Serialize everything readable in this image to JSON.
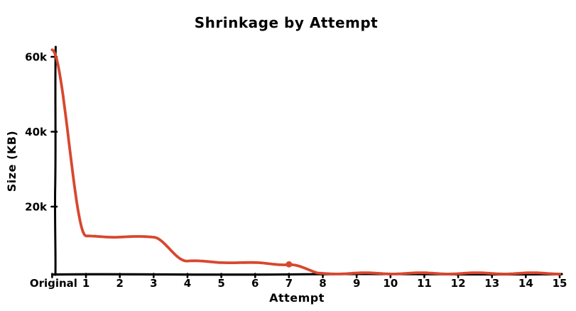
{
  "chart_data": {
    "type": "line",
    "title": "Shrinkage by Attempt",
    "xlabel": "Attempt",
    "ylabel": "Size (KB)",
    "x_tick_labels": [
      "Original",
      "1",
      "2",
      "3",
      "4",
      "5",
      "6",
      "7",
      "8",
      "9",
      "10",
      "11",
      "12",
      "13",
      "14",
      "15"
    ],
    "y_ticks": [
      {
        "label": "60k",
        "value": 60000
      },
      {
        "label": "40k",
        "value": 40000
      },
      {
        "label": "20k",
        "value": 20000
      }
    ],
    "x": [
      0,
      1,
      2,
      3,
      4,
      5,
      6,
      7,
      8,
      9,
      10,
      11,
      12,
      13,
      14,
      15
    ],
    "series": [
      {
        "name": "size-kb",
        "color": "#d8472e",
        "marker_at_x": 7,
        "values": [
          62000,
          12000,
          12000,
          11800,
          5400,
          5200,
          4900,
          4600,
          2000,
          1900,
          1800,
          1700,
          1600,
          1500,
          1400,
          1300
        ]
      }
    ],
    "ylim": [
      0,
      63000
    ],
    "xlim": [
      0,
      15
    ],
    "grid": false,
    "legend": false,
    "style": "xkcd-sketch"
  },
  "colors": {
    "line": "#d8472e",
    "axis": "#000000",
    "text": "#000000",
    "background": "#ffffff"
  }
}
